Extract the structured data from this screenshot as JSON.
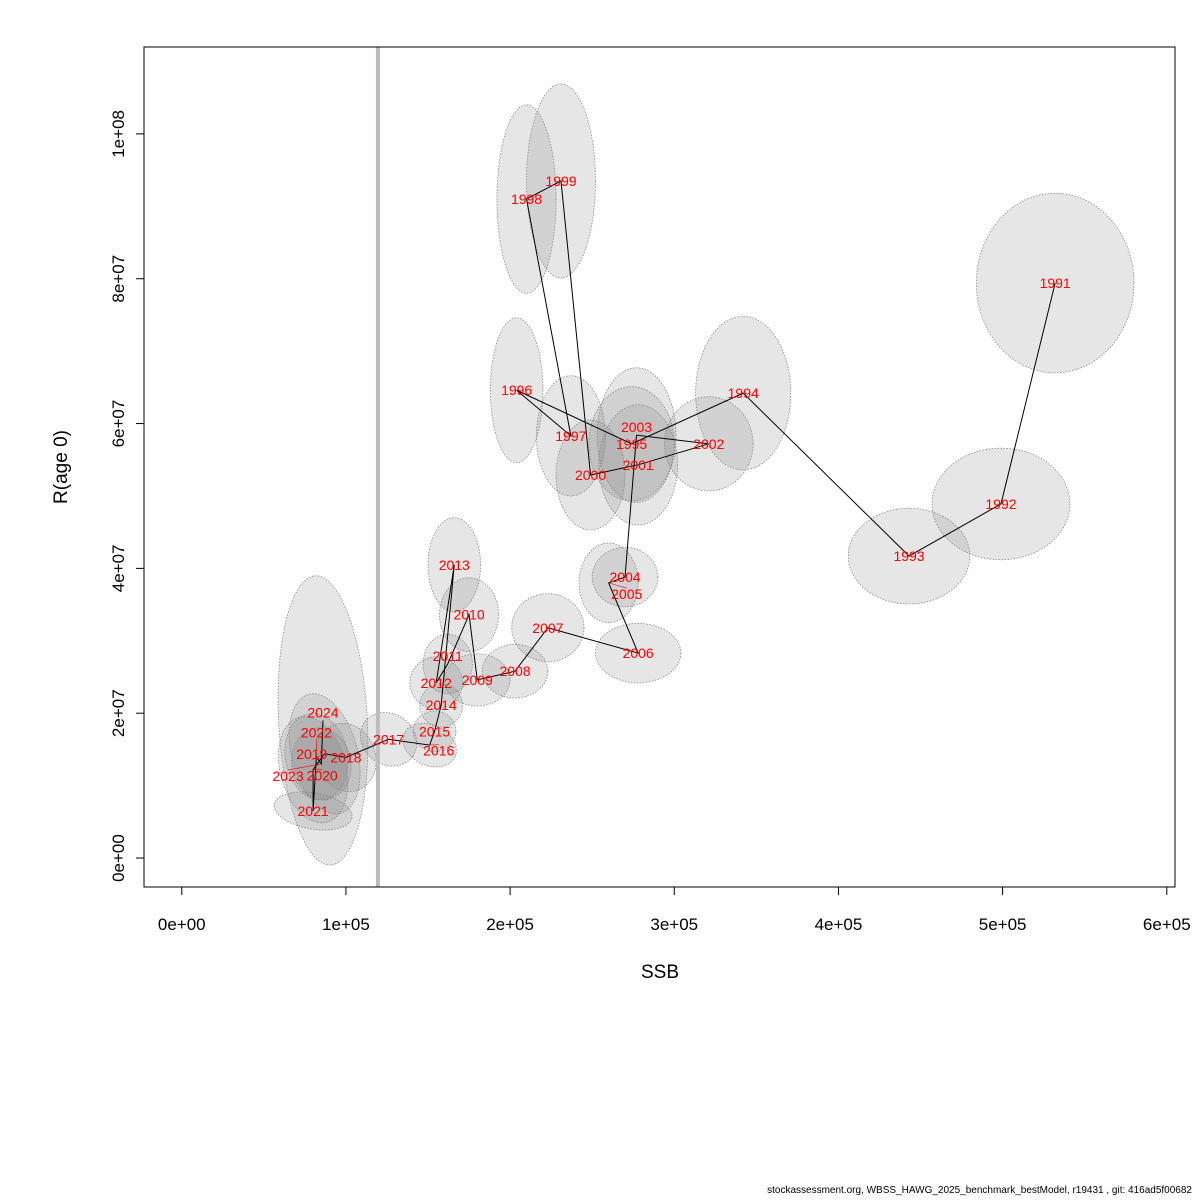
{
  "chart_data": {
    "type": "scatter",
    "xlabel": "SSB",
    "ylabel": "R(age 0)",
    "xlim": [
      -23000,
      605000
    ],
    "ylim": [
      -4000000,
      112000000
    ],
    "xticks": [
      0,
      100000,
      200000,
      300000,
      400000,
      500000,
      600000
    ],
    "xtick_labels": [
      "0e+00",
      "1e+05",
      "2e+05",
      "3e+05",
      "4e+05",
      "5e+05",
      "6e+05"
    ],
    "yticks": [
      0,
      20000000,
      40000000,
      60000000,
      80000000,
      100000000
    ],
    "ytick_labels": [
      "0e+00",
      "2e+07",
      "4e+07",
      "6e+07",
      "8e+07",
      "1e+08"
    ],
    "reference_line_x": 119500,
    "colors": {
      "label": "#ff0000",
      "ellipse_fill": "rgba(128,128,128,0.2)",
      "ellipse_stroke": "#888888",
      "line": "#000000",
      "reference_line": "#bdbdbd"
    },
    "points": [
      {
        "year": "1991",
        "ssb": 532000,
        "r": 79400000,
        "rx": 48000,
        "ry": 12400000,
        "angle": 0
      },
      {
        "year": "1992",
        "ssb": 499000,
        "r": 48900000,
        "rx": 42000,
        "ry": 7700000,
        "angle": 0
      },
      {
        "year": "1993",
        "ssb": 443000,
        "r": 41700000,
        "rx": 37000,
        "ry": 6600000,
        "angle": 0
      },
      {
        "year": "1994",
        "ssb": 342000,
        "r": 64200000,
        "rx": 29000,
        "ry": 10600000,
        "angle": 0
      },
      {
        "year": "1995",
        "ssb": 274000,
        "r": 57200000,
        "rx": 26000,
        "ry": 7900000,
        "angle": 0
      },
      {
        "year": "1996",
        "ssb": 204000,
        "r": 64600000,
        "rx": 16000,
        "ry": 10000000,
        "angle": 0
      },
      {
        "year": "1997",
        "ssb": 237000,
        "r": 58300000,
        "rx": 21000,
        "ry": 8300000,
        "angle": 0
      },
      {
        "year": "1998",
        "ssb": 210000,
        "r": 91000000,
        "rx": 18000,
        "ry": 13000000,
        "angle": 0
      },
      {
        "year": "1999",
        "ssb": 231000,
        "r": 93500000,
        "rx": 21000,
        "ry": 13400000,
        "angle": 0
      },
      {
        "year": "2000",
        "ssb": 249000,
        "r": 52900000,
        "rx": 21000,
        "ry": 7600000,
        "angle": 0
      },
      {
        "year": "2001",
        "ssb": 278000,
        "r": 54300000,
        "rx": 24000,
        "ry": 8300000,
        "angle": 0
      },
      {
        "year": "2002",
        "ssb": 321000,
        "r": 57200000,
        "rx": 27000,
        "ry": 6500000,
        "angle": 0
      },
      {
        "year": "2003",
        "ssb": 277000,
        "r": 58400000,
        "rx": 24000,
        "ry": 9300000,
        "angle": 0
      },
      {
        "year": "2004",
        "ssb": 270000,
        "r": 38800000,
        "rx": 20000,
        "ry": 4100000,
        "angle": 0
      },
      {
        "year": "2005",
        "ssb": 260000,
        "r": 38000000,
        "rx": 18000,
        "ry": 5500000,
        "angle": 0
      },
      {
        "year": "2006",
        "ssb": 278000,
        "r": 28300000,
        "rx": 26000,
        "ry": 4100000,
        "angle": 0
      },
      {
        "year": "2007",
        "ssb": 223000,
        "r": 31800000,
        "rx": 22000,
        "ry": 4700000,
        "angle": 0
      },
      {
        "year": "2008",
        "ssb": 203000,
        "r": 25800000,
        "rx": 20000,
        "ry": 3700000,
        "angle": 0
      },
      {
        "year": "2009",
        "ssb": 180000,
        "r": 24600000,
        "rx": 20000,
        "ry": 3600000,
        "angle": 0
      },
      {
        "year": "2010",
        "ssb": 175000,
        "r": 33600000,
        "rx": 18000,
        "ry": 5100000,
        "angle": 0
      },
      {
        "year": "2011",
        "ssb": 162000,
        "r": 26800000,
        "rx": 15000,
        "ry": 4100000,
        "angle": 0
      },
      {
        "year": "2012",
        "ssb": 155000,
        "r": 24200000,
        "rx": 16000,
        "ry": 3600000,
        "angle": 0
      },
      {
        "year": "2013",
        "ssb": 166000,
        "r": 40500000,
        "rx": 16000,
        "ry": 6500000,
        "angle": 0
      },
      {
        "year": "2014",
        "ssb": 158000,
        "r": 21100000,
        "rx": 13000,
        "ry": 3000000,
        "angle": 0
      },
      {
        "year": "2015",
        "ssb": 154000,
        "r": 17500000,
        "rx": 13000,
        "ry": 2800000,
        "angle": 0
      },
      {
        "year": "2016",
        "ssb": 151000,
        "r": 15600000,
        "rx": 17000,
        "ry": 2800000,
        "angle": -25
      },
      {
        "year": "2017",
        "ssb": 126000,
        "r": 16400000,
        "rx": 18000,
        "ry": 3500000,
        "angle": -35
      },
      {
        "year": "2018",
        "ssb": 100000,
        "r": 13900000,
        "rx": 18000,
        "ry": 4800000,
        "angle": 20
      },
      {
        "year": "2019",
        "ssb": 87000,
        "r": 14400000,
        "rx": 20000,
        "ry": 8500000,
        "angle": 15
      },
      {
        "year": "2020",
        "ssb": 80000,
        "r": 12200000,
        "rx": 20000,
        "ry": 7500000,
        "angle": 15
      },
      {
        "year": "2021",
        "ssb": 80000,
        "r": 6500000,
        "rx": 24000,
        "ry": 2500000,
        "angle": -10
      },
      {
        "year": "2022",
        "ssb": 82000,
        "r": 14000000,
        "rx": 19000,
        "ry": 6000000,
        "angle": 10
      },
      {
        "year": "2023",
        "ssb": 85000,
        "r": 13000000,
        "rx": 18000,
        "ry": 5000000,
        "angle": 10
      },
      {
        "year": "2024",
        "ssb": 86000,
        "r": 19000000,
        "rx": 27000,
        "ry": 20000000,
        "angle": 3
      }
    ]
  },
  "footer": "stockassessment.org, WBSS_HAWG_2025_benchmark_bestModel, r19431 , git: 416ad5f00682"
}
